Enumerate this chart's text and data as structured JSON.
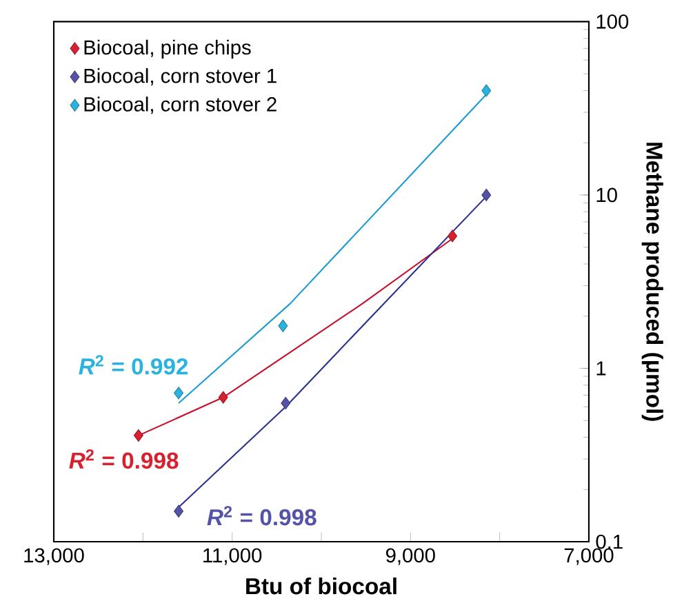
{
  "chart_data": {
    "type": "scatter",
    "xlabel": "Btu of biocoal",
    "ylabel": "Methane produced (μmol)",
    "xlim": [
      13000,
      7000
    ],
    "ylim": [
      0.1,
      100
    ],
    "log": "y",
    "legend": "top left",
    "grid": false,
    "xticks": [
      {
        "value": 13000,
        "label": "13,000"
      },
      {
        "value": 12000,
        "label": null
      },
      {
        "value": 11000,
        "label": "11,000"
      },
      {
        "value": 10000,
        "label": null
      },
      {
        "value": 9000,
        "label": "9,000"
      },
      {
        "value": 8000,
        "label": null
      },
      {
        "value": 7000,
        "label": "7,000"
      }
    ],
    "yticks": [
      0.1,
      1,
      10,
      100
    ],
    "series": [
      {
        "name": "Biocoal, pine chips",
        "marker": "diamond",
        "color": "#d7212f",
        "x": [
          12050,
          11100,
          8530
        ],
        "values": [
          0.41,
          0.68,
          5.8
        ]
      },
      {
        "name": "Biocoal, corn stover 1",
        "marker": "diamond",
        "color": "#5553a8",
        "x": [
          11600,
          10400,
          8150
        ],
        "values": [
          0.15,
          0.63,
          10
        ]
      },
      {
        "name": "Biocoal, corn stover 2",
        "marker": "diamond",
        "color": "#2bb3df",
        "x": [
          11600,
          10430,
          8150
        ],
        "values": [
          0.72,
          1.76,
          40
        ]
      },
      {
        "type": "line",
        "marker": "none",
        "color": "#c8102e",
        "x": [
          12050,
          11100,
          9540,
          8530
        ],
        "values": [
          0.41,
          0.68,
          2.36,
          5.6
        ]
      },
      {
        "type": "line",
        "marker": "none",
        "color": "#2e3192",
        "x": [
          11600,
          10400,
          9300,
          8150
        ],
        "values": [
          0.158,
          0.6,
          2.36,
          9.8
        ]
      },
      {
        "type": "line",
        "marker": "none",
        "color": "#1e9ad6",
        "x": [
          11600,
          10350,
          8150
        ],
        "values": [
          0.63,
          2.36,
          38
        ]
      }
    ],
    "annotations": [
      "*R*$^{2}$ = 0.998",
      "*R*$^{2}$ = 0.998",
      "*R*$^{2}$ = 0.992"
    ]
  }
}
